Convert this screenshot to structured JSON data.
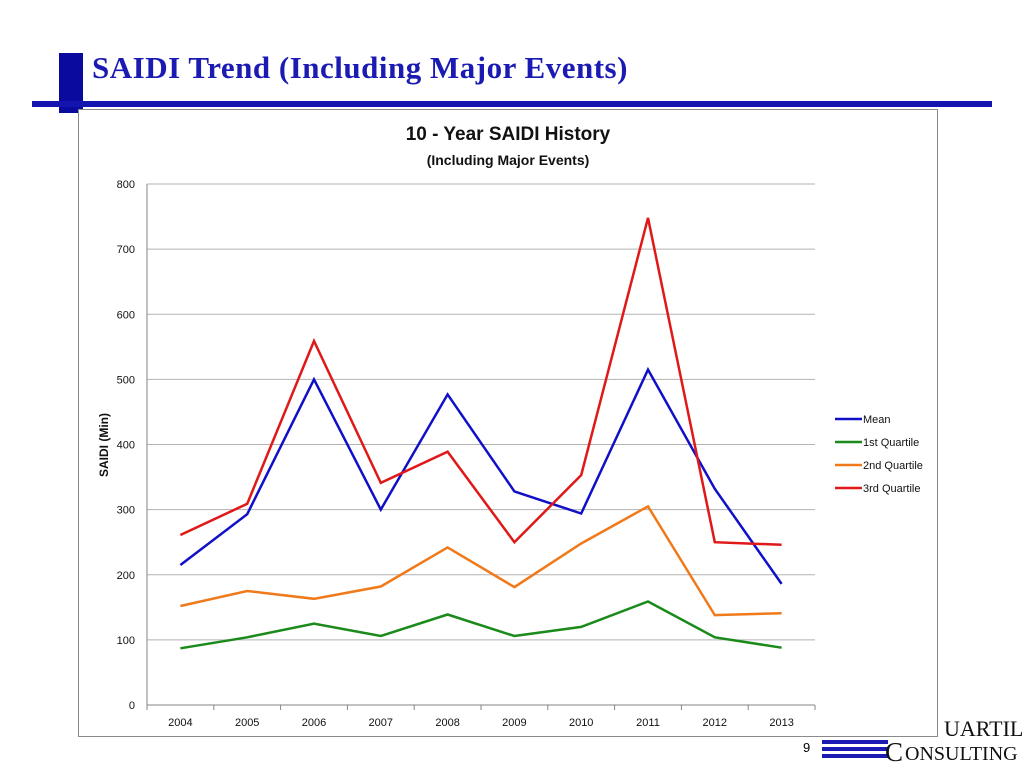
{
  "slide": {
    "title": "SAIDI Trend (Including Major Events)",
    "page_number": "9"
  },
  "logo": {
    "line1": "UARTILE",
    "line2_initial": "C",
    "line2_rest": "ONSULTING"
  },
  "colors": {
    "title": "#1b1bb3",
    "rule": "#1414b0"
  },
  "chart_data": {
    "type": "line",
    "title": "10 - Year SAIDI History",
    "subtitle": "(Including Major Events)",
    "xlabel": "",
    "ylabel": "SAIDI (Min)",
    "ylim": [
      0,
      800
    ],
    "yticks": [
      0,
      100,
      200,
      300,
      400,
      500,
      600,
      700,
      800
    ],
    "grid": true,
    "legend_position": "right",
    "categories": [
      "2004",
      "2005",
      "2006",
      "2007",
      "2008",
      "2009",
      "2010",
      "2011",
      "2012",
      "2013"
    ],
    "series": [
      {
        "name": "Mean",
        "color": "#1010c8",
        "values": [
          215,
          293,
          500,
          300,
          477,
          328,
          294,
          515,
          332,
          186
        ]
      },
      {
        "name": "1st Quartile",
        "color": "#1a8a1a",
        "values": [
          87,
          104,
          125,
          106,
          139,
          106,
          120,
          159,
          104,
          88
        ]
      },
      {
        "name": "2nd Quartile",
        "color": "#f07a1a",
        "values": [
          152,
          175,
          163,
          182,
          242,
          181,
          248,
          305,
          138,
          141
        ]
      },
      {
        "name": "3rd Quartile",
        "color": "#e01818",
        "values": [
          261,
          309,
          559,
          341,
          389,
          250,
          353,
          748,
          250,
          246
        ]
      }
    ]
  }
}
